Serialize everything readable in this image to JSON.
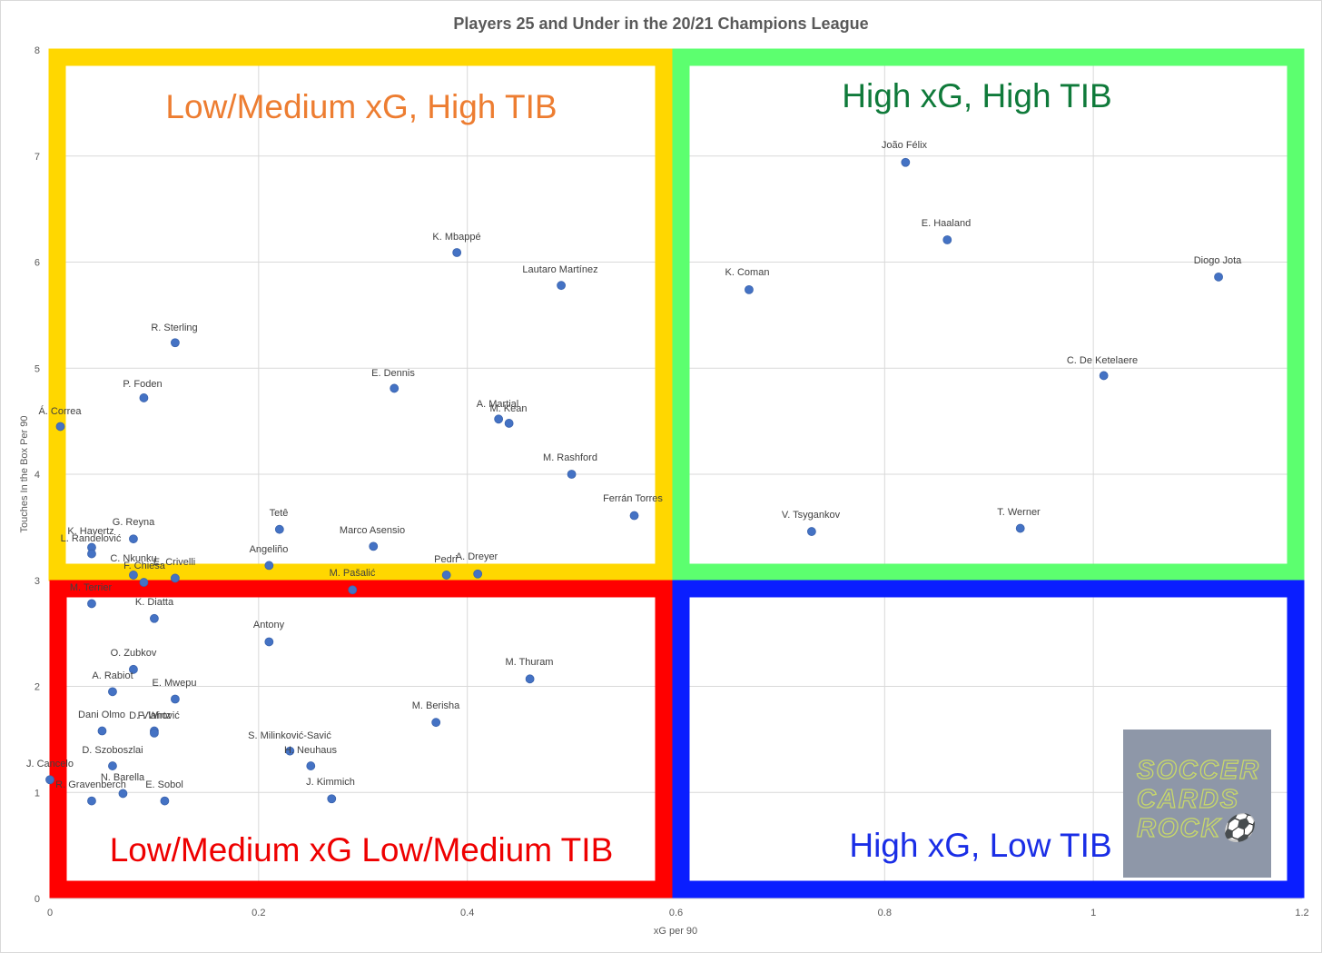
{
  "chart_data": {
    "type": "scatter",
    "title": "Players 25 and Under in the 20/21 Champions League",
    "xlabel": "xG per 90",
    "ylabel": "Touches In the Box Per 90",
    "xlim": [
      0,
      1.2
    ],
    "ylim": [
      0,
      8
    ],
    "xticks": [
      "0",
      "0.2",
      "0.4",
      "0.6",
      "0.8",
      "1",
      "1.2"
    ],
    "yticks": [
      "0",
      "1",
      "2",
      "3",
      "4",
      "5",
      "6",
      "7",
      "8"
    ],
    "grid": true,
    "marker_color": "#4472c4",
    "quadrants": [
      {
        "label": "Low/Medium xG, High TIB",
        "color": "#ffd700",
        "text_color": "#ed7d31"
      },
      {
        "label": "High xG, High TIB",
        "color": "#5cff6f",
        "text_color": "#0f7a3a"
      },
      {
        "label": "Low/Medium xG Low/Medium TIB",
        "color": "#ff0000",
        "text_color": "#ee0000"
      },
      {
        "label": "High xG, Low TIB",
        "color": "#0a1eff",
        "text_color": "#1a2ee6"
      }
    ],
    "points": [
      {
        "name": "João Félix",
        "x": 0.82,
        "y": 6.94
      },
      {
        "name": "E. Haaland",
        "x": 0.86,
        "y": 6.21
      },
      {
        "name": "Diogo Jota",
        "x": 1.12,
        "y": 5.86
      },
      {
        "name": "K. Coman",
        "x": 0.67,
        "y": 5.74
      },
      {
        "name": "C. De Ketelaere",
        "x": 1.01,
        "y": 4.93
      },
      {
        "name": "V. Tsygankov",
        "x": 0.73,
        "y": 3.46
      },
      {
        "name": "T. Werner",
        "x": 0.93,
        "y": 3.49
      },
      {
        "name": "K. Mbappé",
        "x": 0.39,
        "y": 6.09
      },
      {
        "name": "Lautaro Martínez",
        "x": 0.49,
        "y": 5.78
      },
      {
        "name": "R. Sterling",
        "x": 0.12,
        "y": 5.24
      },
      {
        "name": "E. Dennis",
        "x": 0.33,
        "y": 4.81
      },
      {
        "name": "P. Foden",
        "x": 0.09,
        "y": 4.72
      },
      {
        "name": "Á. Correa",
        "x": 0.01,
        "y": 4.45
      },
      {
        "name": "A. Martial",
        "x": 0.43,
        "y": 4.52
      },
      {
        "name": "M. Kean",
        "x": 0.44,
        "y": 4.48
      },
      {
        "name": "M. Rashford",
        "x": 0.5,
        "y": 4.0
      },
      {
        "name": "Ferrán Torres",
        "x": 0.56,
        "y": 3.61
      },
      {
        "name": "Tetê",
        "x": 0.22,
        "y": 3.48
      },
      {
        "name": "G. Reyna",
        "x": 0.08,
        "y": 3.39
      },
      {
        "name": "K. Havertz",
        "x": 0.04,
        "y": 3.31
      },
      {
        "name": "L. Randelović",
        "x": 0.04,
        "y": 3.25
      },
      {
        "name": "Marco Asensio",
        "x": 0.31,
        "y": 3.32
      },
      {
        "name": "Angeliño",
        "x": 0.21,
        "y": 3.14
      },
      {
        "name": "C. Nkunku",
        "x": 0.08,
        "y": 3.05
      },
      {
        "name": "F. Chiesa",
        "x": 0.09,
        "y": 2.98
      },
      {
        "name": "E. Crivelli",
        "x": 0.12,
        "y": 3.02
      },
      {
        "name": "Pedri",
        "x": 0.38,
        "y": 3.05
      },
      {
        "name": "A. Dreyer",
        "x": 0.41,
        "y": 3.06
      },
      {
        "name": "M. Pašalić",
        "x": 0.29,
        "y": 2.91
      },
      {
        "name": "M. Terrier",
        "x": 0.04,
        "y": 2.78
      },
      {
        "name": "K. Diatta",
        "x": 0.1,
        "y": 2.64
      },
      {
        "name": "Antony",
        "x": 0.21,
        "y": 2.42
      },
      {
        "name": "O. Zubkov",
        "x": 0.08,
        "y": 2.16
      },
      {
        "name": "A. Rabiot",
        "x": 0.06,
        "y": 1.95
      },
      {
        "name": "E. Mwepu",
        "x": 0.12,
        "y": 1.88
      },
      {
        "name": "M. Thuram",
        "x": 0.46,
        "y": 2.07
      },
      {
        "name": "M. Berisha",
        "x": 0.37,
        "y": 1.66
      },
      {
        "name": "Dani Olmo",
        "x": 0.05,
        "y": 1.58
      },
      {
        "name": "F. Wirtz",
        "x": 0.1,
        "y": 1.58
      },
      {
        "name": "D. Vlahović",
        "x": 0.1,
        "y": 1.56
      },
      {
        "name": "S. Milinković-Savić",
        "x": 0.23,
        "y": 1.39
      },
      {
        "name": "D. Szoboszlai",
        "x": 0.06,
        "y": 1.25
      },
      {
        "name": "H. Neuhaus",
        "x": 0.25,
        "y": 1.25
      },
      {
        "name": "J. Cancelo",
        "x": 0.0,
        "y": 1.12
      },
      {
        "name": "N. Barella",
        "x": 0.07,
        "y": 0.99
      },
      {
        "name": "R. Gravenberch",
        "x": 0.04,
        "y": 0.92
      },
      {
        "name": "E. Sobol",
        "x": 0.11,
        "y": 0.92
      },
      {
        "name": "J. Kimmich",
        "x": 0.27,
        "y": 0.94
      }
    ],
    "labels": [
      {
        "text": "João Félix"
      },
      {
        "text": "E. Haaland"
      },
      {
        "text": "Diogo Jota"
      },
      {
        "text": "K. Coman"
      },
      {
        "text": "C. De Ketelaere"
      },
      {
        "text": "V. Tsygankov"
      },
      {
        "text": "T. Werner"
      },
      {
        "text": "K. Mbappé"
      },
      {
        "text": "Lautaro Martínez"
      },
      {
        "text": "R. Sterling"
      },
      {
        "text": "E. Dennis"
      },
      {
        "text": "P. Foden"
      },
      {
        "text": "Á. Correa"
      },
      {
        "text": "A. Martial"
      },
      {
        "text": "M. Kean"
      },
      {
        "text": "M. Rashford"
      },
      {
        "text": "Ferrán Torres"
      },
      {
        "text": "Tetê"
      },
      {
        "text": "G. Reyna"
      },
      {
        "text": "K. Havertz"
      },
      {
        "text": "L. Randelović"
      },
      {
        "text": "Marco Asensio"
      },
      {
        "text": "Angeliño"
      },
      {
        "text": "C. Nkunku"
      },
      {
        "text": "F. Chiesa"
      },
      {
        "text": "E. Crivelli"
      },
      {
        "text": "Pedri"
      },
      {
        "text": "A. Dreyer"
      },
      {
        "text": "M. Pašalić"
      },
      {
        "text": "M. Terrier"
      },
      {
        "text": "K. Diatta"
      },
      {
        "text": "Antony"
      },
      {
        "text": "O. Zubkov"
      },
      {
        "text": "A. Rabiot"
      },
      {
        "text": "E. Mwepu"
      },
      {
        "text": "M. Thuram"
      },
      {
        "text": "M. Berisha"
      },
      {
        "text": "Dani Olmo"
      },
      {
        "text": "F. Wirtz"
      },
      {
        "text": "D. Vlahović"
      },
      {
        "text": "S. Milinković-Savić"
      },
      {
        "text": "D. Szoboszlai"
      },
      {
        "text": "H. Neuhaus"
      },
      {
        "text": "J. Cancelo"
      },
      {
        "text": "N. Barella"
      },
      {
        "text": "R. Gravenberch"
      },
      {
        "text": "E. Sobol"
      },
      {
        "text": "J. Kimmich"
      }
    ]
  },
  "logo": {
    "lines": [
      "SOCCER",
      "CARDS",
      "ROCK⚽"
    ]
  }
}
